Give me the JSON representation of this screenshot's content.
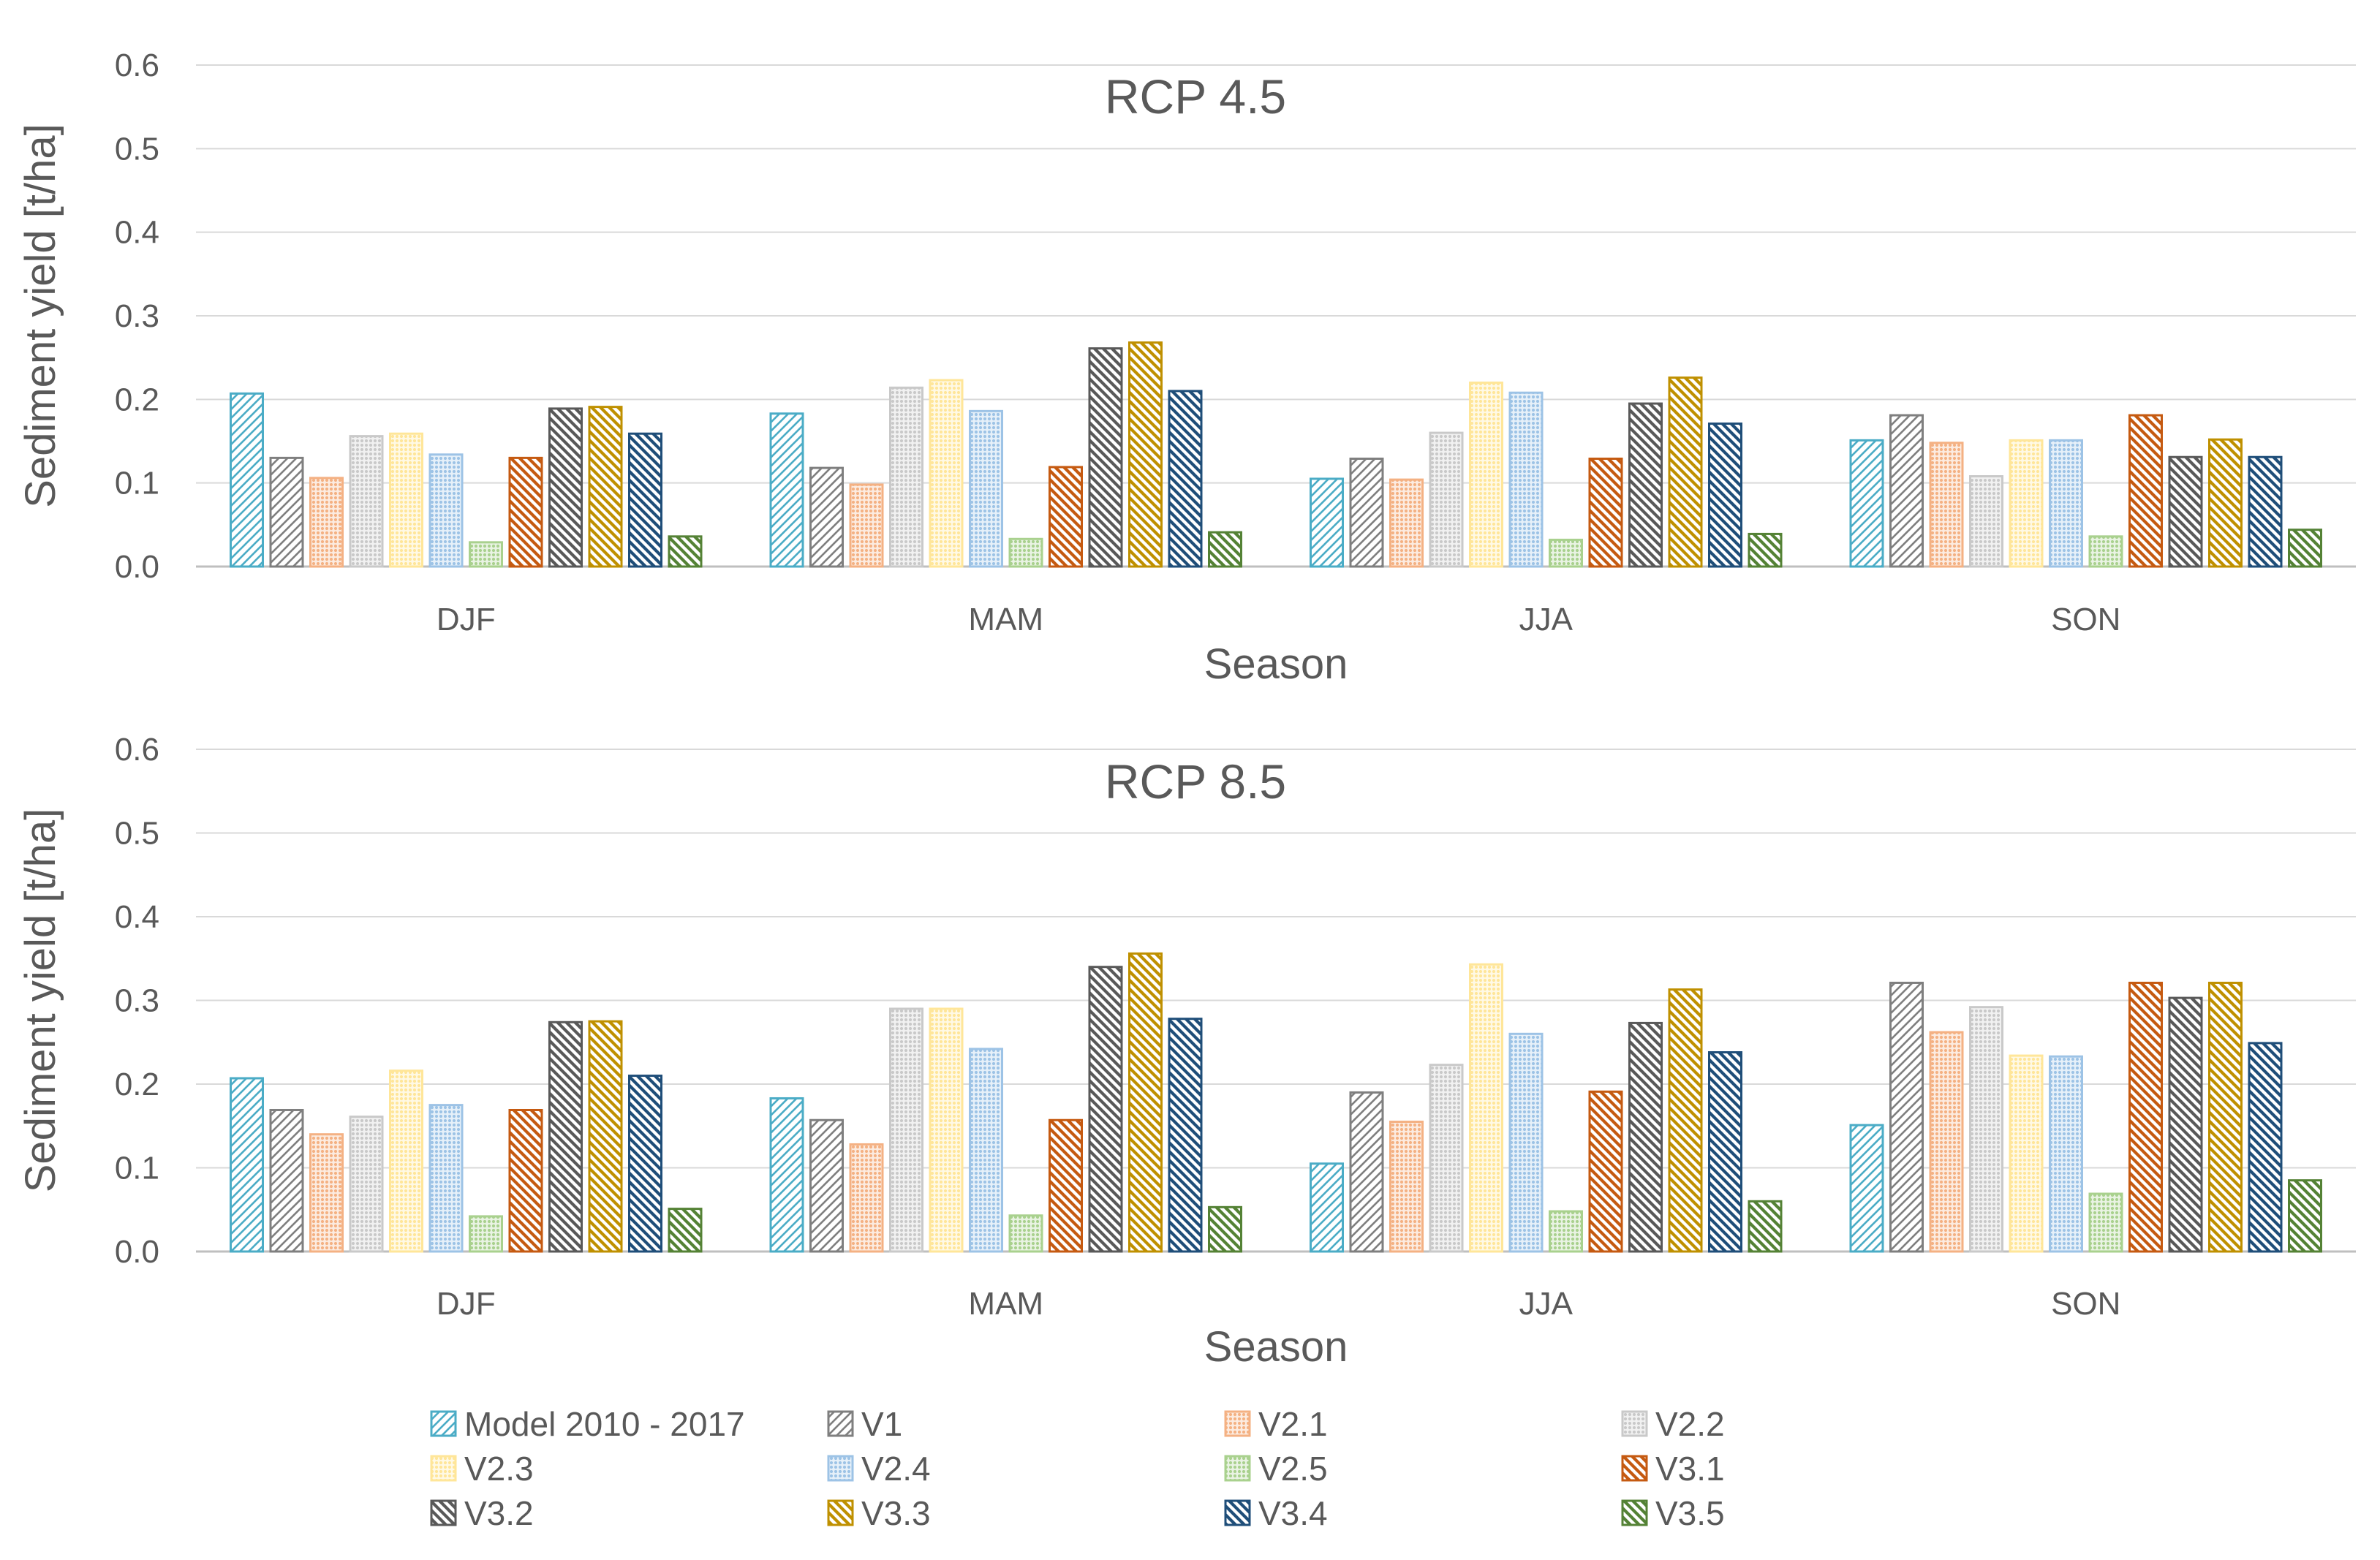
{
  "chart_data": [
    {
      "type": "bar",
      "title": "RCP 4.5",
      "xlabel": "Season",
      "ylabel": "Sediment yield [t/ha]",
      "ylim": [
        0,
        0.6
      ],
      "yticks": [
        "0.0",
        "0.1",
        "0.2",
        "0.3",
        "0.4",
        "0.5",
        "0.6"
      ],
      "grid": true,
      "categories": [
        "DJF",
        "MAM",
        "JJA",
        "SON"
      ],
      "series": [
        {
          "name": "Model 2010 - 2017",
          "values": [
            0.207,
            0.183,
            0.105,
            0.151
          ]
        },
        {
          "name": "V1",
          "values": [
            0.13,
            0.118,
            0.129,
            0.181
          ]
        },
        {
          "name": "V2.1",
          "values": [
            0.106,
            0.098,
            0.104,
            0.148
          ]
        },
        {
          "name": "V2.2",
          "values": [
            0.156,
            0.214,
            0.16,
            0.108
          ]
        },
        {
          "name": "V2.3",
          "values": [
            0.159,
            0.223,
            0.22,
            0.151
          ]
        },
        {
          "name": "V2.4",
          "values": [
            0.134,
            0.186,
            0.208,
            0.151
          ]
        },
        {
          "name": "V2.5",
          "values": [
            0.029,
            0.033,
            0.032,
            0.036
          ]
        },
        {
          "name": "V3.1",
          "values": [
            0.13,
            0.119,
            0.129,
            0.181
          ]
        },
        {
          "name": "V3.2",
          "values": [
            0.189,
            0.261,
            0.195,
            0.131
          ]
        },
        {
          "name": "V3.3",
          "values": [
            0.191,
            0.268,
            0.226,
            0.152
          ]
        },
        {
          "name": "V3.4",
          "values": [
            0.159,
            0.21,
            0.171,
            0.131
          ]
        },
        {
          "name": "V3.5",
          "values": [
            0.036,
            0.041,
            0.039,
            0.044
          ]
        }
      ]
    },
    {
      "type": "bar",
      "title": "RCP 8.5",
      "xlabel": "Season",
      "ylabel": "Sediment yield [t/ha]",
      "ylim": [
        0,
        0.6
      ],
      "yticks": [
        "0.0",
        "0.1",
        "0.2",
        "0.3",
        "0.4",
        "0.5",
        "0.6"
      ],
      "grid": true,
      "categories": [
        "DJF",
        "MAM",
        "JJA",
        "SON"
      ],
      "series": [
        {
          "name": "Model 2010 - 2017",
          "values": [
            0.207,
            0.183,
            0.105,
            0.151
          ]
        },
        {
          "name": "V1",
          "values": [
            0.169,
            0.157,
            0.19,
            0.321
          ]
        },
        {
          "name": "V2.1",
          "values": [
            0.14,
            0.128,
            0.155,
            0.262
          ]
        },
        {
          "name": "V2.2",
          "values": [
            0.161,
            0.29,
            0.223,
            0.292
          ]
        },
        {
          "name": "V2.3",
          "values": [
            0.216,
            0.29,
            0.343,
            0.234
          ]
        },
        {
          "name": "V2.4",
          "values": [
            0.175,
            0.242,
            0.26,
            0.233
          ]
        },
        {
          "name": "V2.5",
          "values": [
            0.042,
            0.043,
            0.048,
            0.069
          ]
        },
        {
          "name": "V3.1",
          "values": [
            0.169,
            0.157,
            0.191,
            0.321
          ]
        },
        {
          "name": "V3.2",
          "values": [
            0.274,
            0.34,
            0.273,
            0.303
          ]
        },
        {
          "name": "V3.3",
          "values": [
            0.275,
            0.356,
            0.313,
            0.321
          ]
        },
        {
          "name": "V3.4",
          "values": [
            0.21,
            0.278,
            0.238,
            0.249
          ]
        },
        {
          "name": "V3.5",
          "values": [
            0.051,
            0.053,
            0.06,
            0.085
          ]
        }
      ]
    }
  ],
  "legend": {
    "items": [
      {
        "label": "Model 2010 - 2017",
        "color": "#4BACC6",
        "pattern": "diag-up"
      },
      {
        "label": "V1",
        "color": "#7F7F7F",
        "pattern": "diag-up"
      },
      {
        "label": "V2.1",
        "color": "#F4B183",
        "pattern": "dots"
      },
      {
        "label": "V2.2",
        "color": "#C9C9C9",
        "pattern": "dots"
      },
      {
        "label": "V2.3",
        "color": "#FFE699",
        "pattern": "dots"
      },
      {
        "label": "V2.4",
        "color": "#9DC3E6",
        "pattern": "dots"
      },
      {
        "label": "V2.5",
        "color": "#A9D18E",
        "pattern": "dots"
      },
      {
        "label": "V3.1",
        "color": "#C55A11",
        "pattern": "diag-down"
      },
      {
        "label": "V3.2",
        "color": "#595959",
        "pattern": "diag-down"
      },
      {
        "label": "V3.3",
        "color": "#BF9000",
        "pattern": "diag-down"
      },
      {
        "label": "V3.4",
        "color": "#1F4E79",
        "pattern": "diag-down"
      },
      {
        "label": "V3.5",
        "color": "#548235",
        "pattern": "diag-down"
      }
    ]
  }
}
